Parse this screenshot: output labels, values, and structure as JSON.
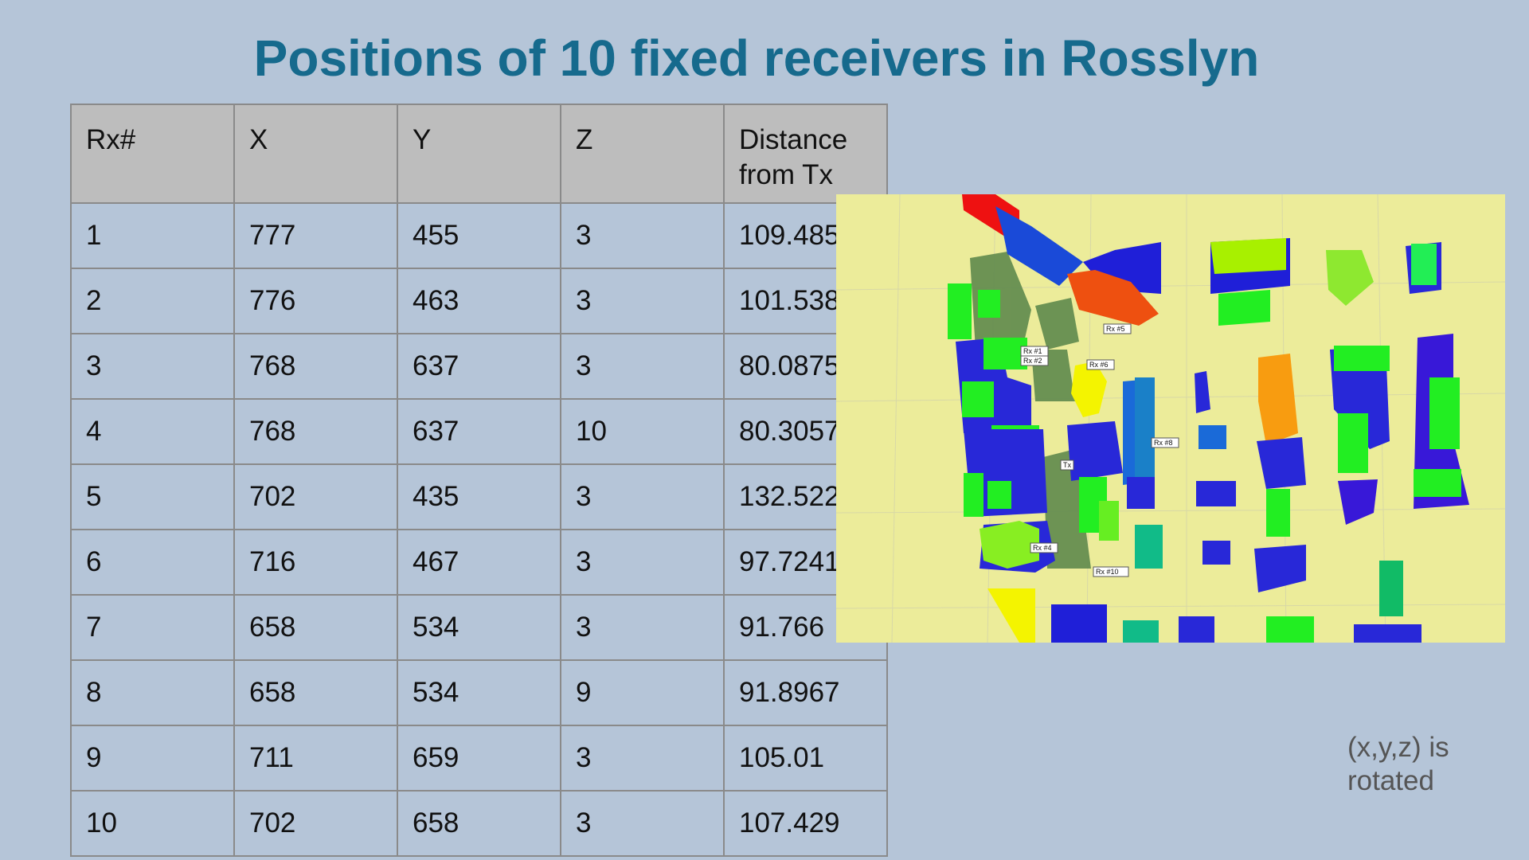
{
  "title": "Positions of 10 fixed receivers in Rosslyn",
  "table": {
    "headers": [
      "Rx#",
      "X",
      "Y",
      "Z",
      "Distance from Tx"
    ],
    "rows": [
      [
        "1",
        "777",
        "455",
        "3",
        "109.485"
      ],
      [
        "2",
        "776",
        "463",
        "3",
        "101.538"
      ],
      [
        "3",
        "768",
        "637",
        "3",
        "80.0875"
      ],
      [
        "4",
        "768",
        "637",
        "10",
        "80.3057"
      ],
      [
        "5",
        "702",
        "435",
        "3",
        "132.522"
      ],
      [
        "6",
        "716",
        "467",
        "3",
        "97.7241"
      ],
      [
        "7",
        "658",
        "534",
        "3",
        "91.766"
      ],
      [
        "8",
        "658",
        "534",
        "9",
        "91.8967"
      ],
      [
        "9",
        "711",
        "659",
        "3",
        "105.01"
      ],
      [
        "10",
        "702",
        "658",
        "3",
        "107.429"
      ]
    ]
  },
  "map": {
    "labels": {
      "rx1": "Rx #1",
      "rx2": "Rx #2",
      "rx5": "Rx #5",
      "rx6": "Rx #6",
      "rx8": "Rx #8",
      "rx4": "Rx #4",
      "rx10": "Rx #10",
      "tx": "Tx"
    }
  },
  "note": "(x,y,z) is rotated"
}
